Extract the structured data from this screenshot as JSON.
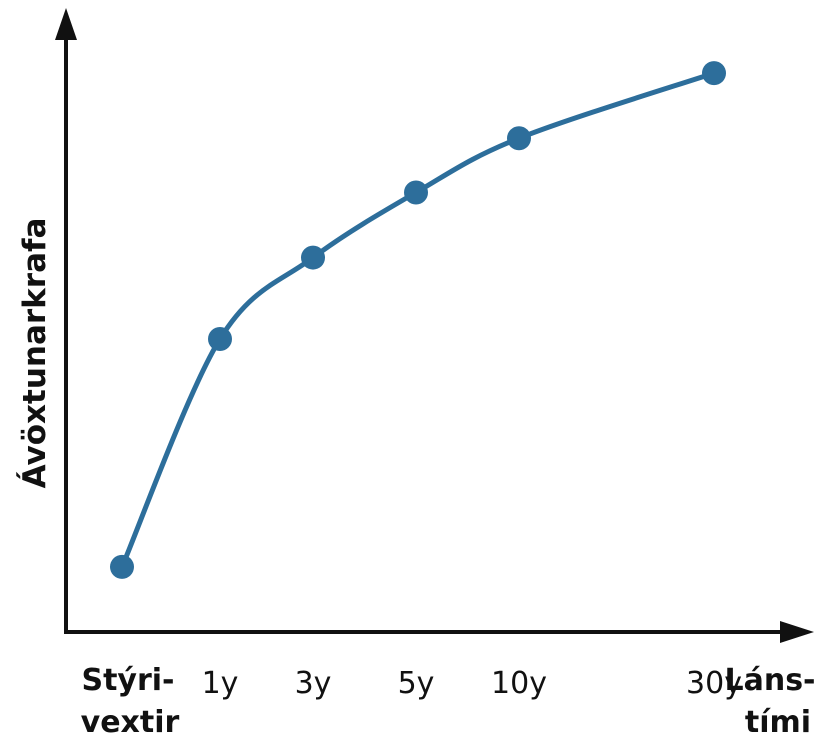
{
  "chart_data": {
    "type": "line",
    "ylabel": "Ávöxtunarkrafa",
    "categories": [
      "Stýri-\nvextir",
      "1y",
      "3y",
      "5y",
      "10y",
      "30y"
    ],
    "x_end_label": "Láns-\ntími",
    "values": [
      1.2,
      5.4,
      6.9,
      8.1,
      9.1,
      10.3
    ],
    "ylim": [
      0,
      11.5
    ],
    "grid": false,
    "legend": "none",
    "colors": {
      "series": "#2d6e9b",
      "axis": "#111111"
    },
    "labels": {
      "x0_line1": "Stýri-",
      "x0_line2": "vextir",
      "x_end_line1": "Láns-",
      "x_end_line2": "tími"
    }
  }
}
